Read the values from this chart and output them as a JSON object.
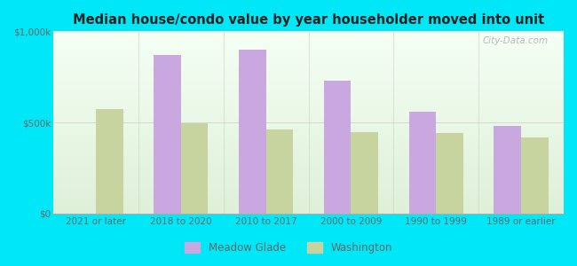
{
  "title": "Median house/condo value by year householder moved into unit",
  "categories": [
    "2021 or later",
    "2018 to 2020",
    "2010 to 2017",
    "2000 to 2009",
    "1990 to 1999",
    "1989 or earlier"
  ],
  "meadow_glade": [
    0,
    870000,
    900000,
    730000,
    560000,
    480000
  ],
  "washington": [
    575000,
    495000,
    460000,
    445000,
    440000,
    420000
  ],
  "meadow_glade_color": "#c9a8e0",
  "washington_color": "#c8d4a0",
  "background_outer": "#00e8f8",
  "title_color": "#222222",
  "axis_label_color": "#666666",
  "legend_meadow": "Meadow Glade",
  "legend_washington": "Washington",
  "ylim": [
    0,
    1000000
  ],
  "yticks": [
    0,
    500000,
    1000000
  ],
  "watermark": "City-Data.com"
}
